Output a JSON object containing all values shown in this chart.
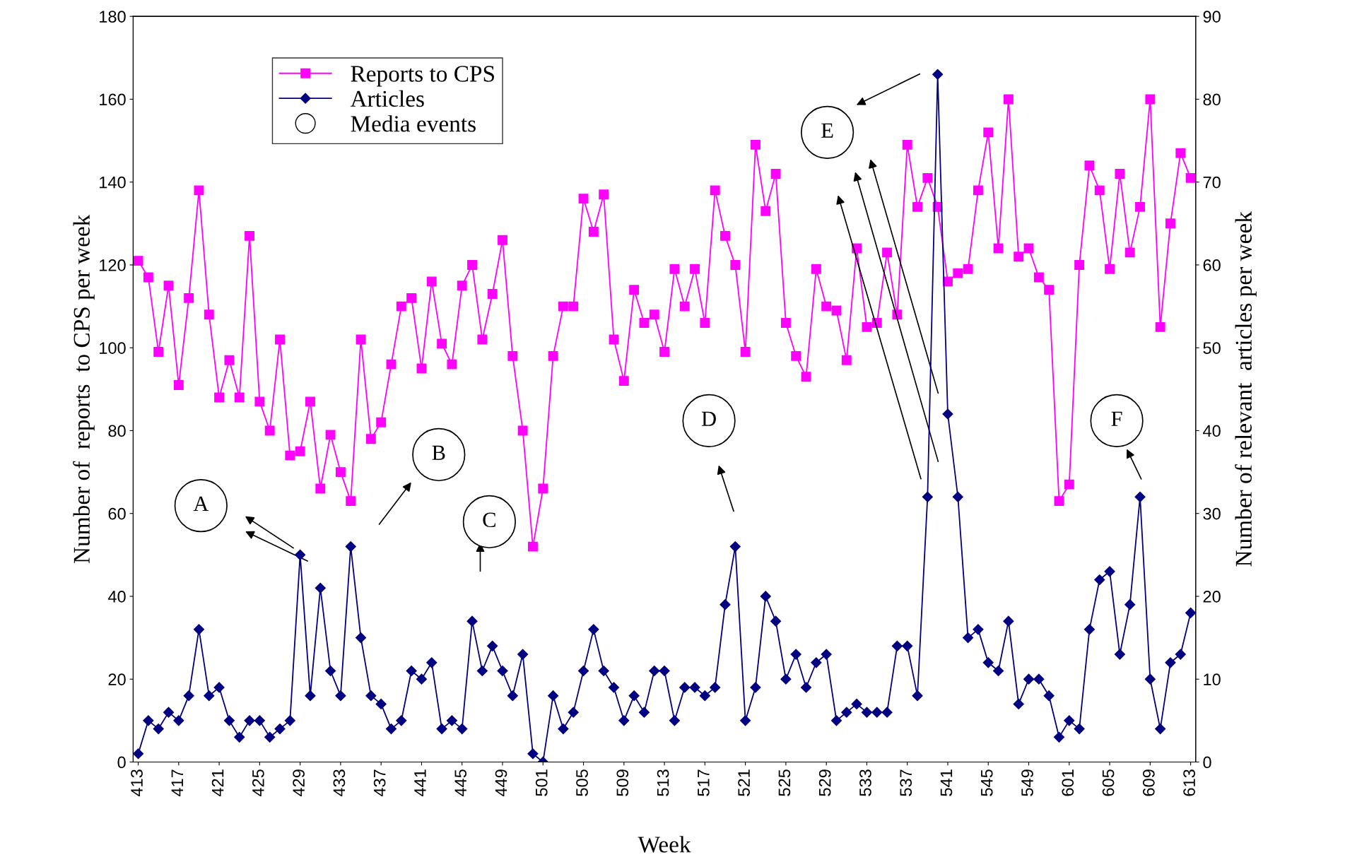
{
  "chart_data": {
    "type": "line",
    "xlabel": "Week",
    "ylabel": "Number of  reports  to CPS per week",
    "y2label": "Number of relevant  articles per week",
    "categories": [
      "413",
      null,
      null,
      null,
      "417",
      null,
      null,
      null,
      "421",
      null,
      null,
      null,
      "425",
      null,
      null,
      null,
      "429",
      null,
      null,
      null,
      "433",
      null,
      null,
      null,
      "437",
      null,
      null,
      null,
      "441",
      null,
      null,
      null,
      "445",
      null,
      null,
      null,
      "449",
      null,
      null,
      null,
      "501",
      null,
      null,
      null,
      "505",
      null,
      null,
      null,
      "509",
      null,
      null,
      null,
      "513",
      null,
      null,
      null,
      "517",
      null,
      null,
      null,
      "521",
      null,
      null,
      null,
      "525",
      null,
      null,
      null,
      "529",
      null,
      null,
      null,
      "533",
      null,
      null,
      null,
      "537",
      null,
      null,
      null,
      "541",
      null,
      null,
      null,
      "545",
      null,
      null,
      null,
      "549",
      null,
      null,
      null,
      "601",
      null,
      null,
      null,
      "605",
      null,
      null,
      null,
      "609",
      null,
      null,
      null,
      "613"
    ],
    "series": [
      {
        "name": "Reports to CPS",
        "color": "#ff00ff",
        "marker": "square",
        "values": [
          121,
          117,
          99,
          115,
          91,
          112,
          138,
          108,
          88,
          97,
          88,
          127,
          87,
          80,
          102,
          74,
          75,
          87,
          66,
          79,
          70,
          63,
          102,
          78,
          82,
          96,
          110,
          112,
          95,
          116,
          101,
          96,
          115,
          120,
          102,
          113,
          126,
          98,
          80,
          52,
          66,
          98,
          110,
          110,
          136,
          128,
          137,
          102,
          92,
          114,
          106,
          108,
          99,
          119,
          110,
          119,
          106,
          138,
          127,
          120,
          99,
          149,
          133,
          142,
          106,
          98,
          93,
          119,
          110,
          109,
          97,
          124,
          105,
          106,
          123,
          108,
          149,
          134,
          141,
          134,
          116,
          118,
          119,
          138,
          152,
          124,
          160,
          122,
          124,
          117,
          114,
          63,
          67,
          120,
          144,
          138,
          119,
          142,
          123,
          134,
          160,
          105,
          130,
          147,
          141
        ]
      },
      {
        "name": "Articles",
        "color": "#000080",
        "marker": "diamond",
        "axis": "y2",
        "values": [
          1,
          5,
          4,
          6,
          5,
          8,
          16,
          8,
          9,
          5,
          3,
          5,
          5,
          3,
          4,
          5,
          25,
          8,
          21,
          11,
          8,
          26,
          15,
          8,
          7,
          4,
          5,
          11,
          10,
          12,
          4,
          5,
          4,
          17,
          11,
          14,
          11,
          8,
          13,
          1,
          0,
          8,
          4,
          6,
          11,
          16,
          11,
          9,
          5,
          8,
          6,
          11,
          11,
          5,
          9,
          9,
          8,
          9,
          19,
          26,
          5,
          9,
          20,
          17,
          10,
          13,
          9,
          12,
          13,
          5,
          6,
          7,
          6,
          6,
          6,
          14,
          14,
          8,
          32,
          83,
          42,
          32,
          15,
          16,
          12,
          11,
          17,
          7,
          10,
          10,
          8,
          3,
          5,
          4,
          16,
          22,
          23,
          13,
          19,
          32,
          10,
          4,
          12,
          13,
          18
        ]
      }
    ],
    "ylim": [
      0,
      180
    ],
    "yticks": [
      0,
      20,
      40,
      60,
      80,
      100,
      120,
      140,
      160,
      180
    ],
    "y2lim": [
      0,
      90
    ],
    "y2ticks": [
      0,
      10,
      20,
      30,
      40,
      50,
      60,
      70,
      80,
      90
    ],
    "legend": "top left",
    "grid": false,
    "line_style": "solid",
    "annotations": [
      "Media events",
      "A",
      "B",
      "C",
      "D",
      "E",
      "F"
    ]
  }
}
